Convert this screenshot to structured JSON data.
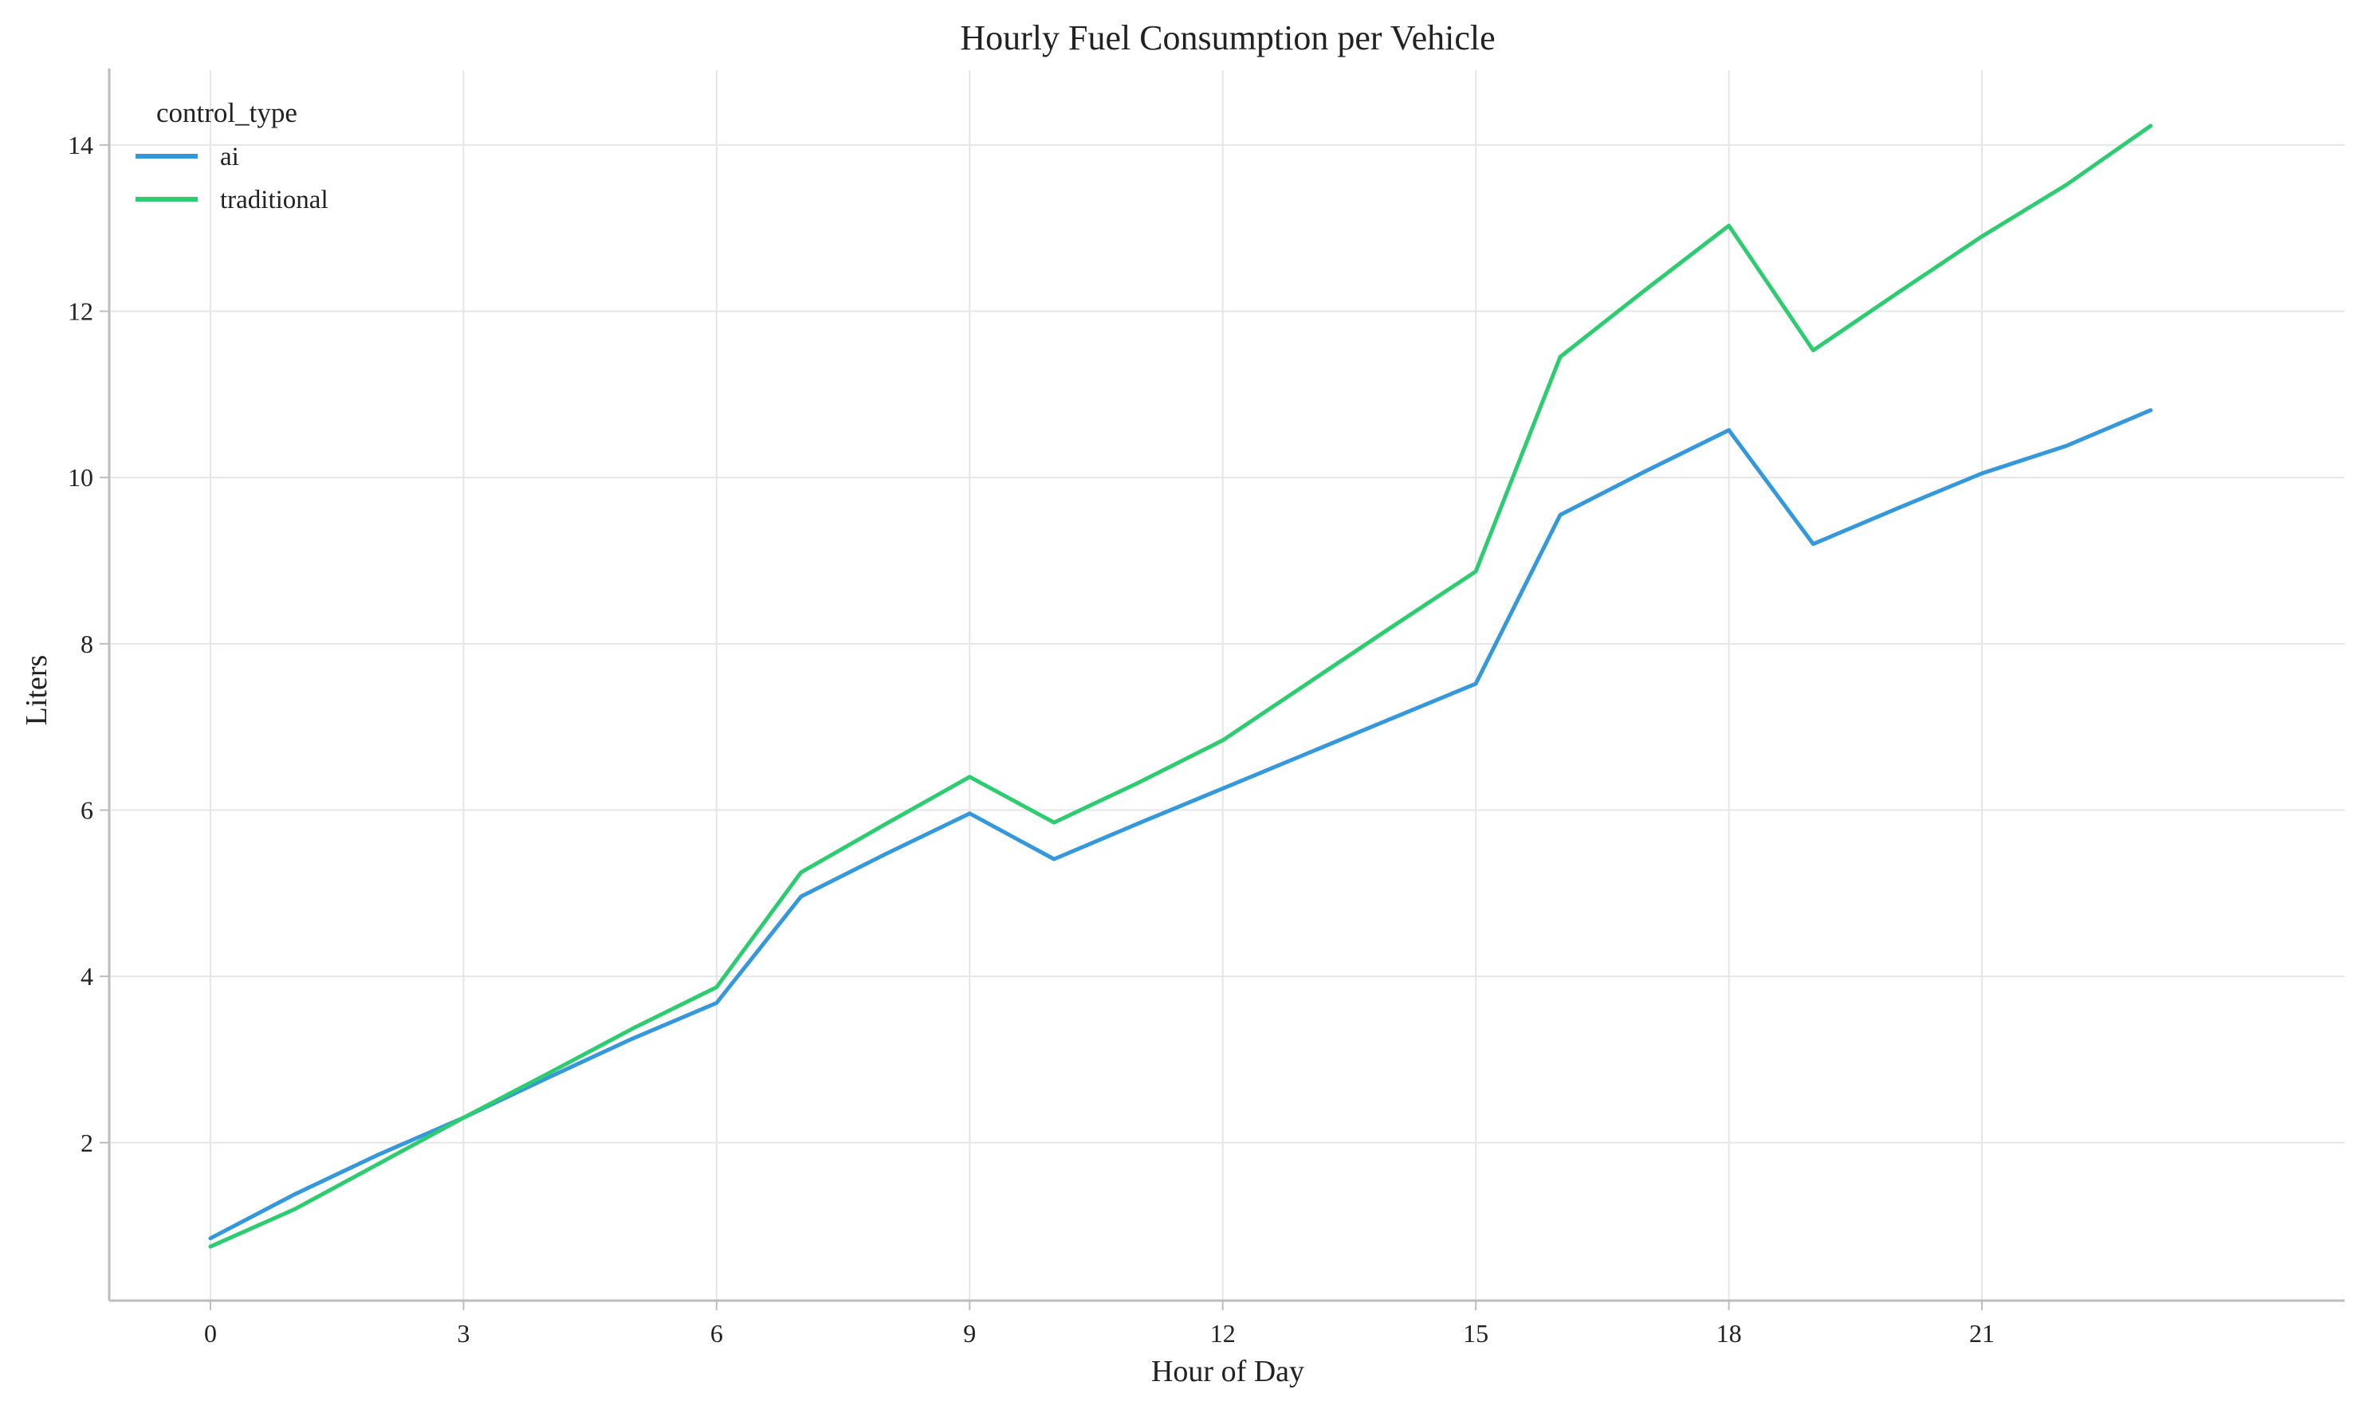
{
  "chart_data": {
    "type": "line",
    "title": "Hourly Fuel Consumption per Vehicle",
    "xlabel": "Hour of Day",
    "ylabel": "Liters",
    "x": [
      0,
      1,
      2,
      3,
      4,
      5,
      6,
      7,
      8,
      9,
      10,
      11,
      12,
      13,
      14,
      15,
      16,
      17,
      18,
      19,
      20,
      21,
      22,
      23
    ],
    "xticks": [
      0,
      3,
      6,
      9,
      12,
      15,
      18,
      21
    ],
    "yticks": [
      2,
      4,
      6,
      8,
      10,
      12,
      14
    ],
    "xlim": [
      -1.2,
      25.3
    ],
    "ylim": [
      0.1,
      14.9
    ],
    "grid": true,
    "legend": {
      "title": "control_type",
      "placement": "top-left"
    },
    "series": [
      {
        "name": "ai",
        "color": "#3498db",
        "values": [
          0.85,
          1.38,
          1.86,
          2.3,
          2.78,
          3.25,
          3.68,
          4.96,
          5.47,
          5.96,
          5.41,
          5.84,
          6.26,
          6.68,
          7.1,
          7.52,
          9.55,
          10.07,
          10.57,
          9.2,
          9.63,
          10.05,
          10.38,
          10.81
        ]
      },
      {
        "name": "traditional",
        "color": "#2ecc71",
        "values": [
          0.75,
          1.2,
          1.75,
          2.3,
          2.83,
          3.37,
          3.87,
          5.25,
          5.83,
          6.4,
          5.85,
          6.33,
          6.84,
          7.52,
          8.2,
          8.87,
          11.45,
          12.25,
          13.03,
          11.53,
          12.22,
          12.9,
          13.52,
          14.23
        ]
      }
    ]
  }
}
